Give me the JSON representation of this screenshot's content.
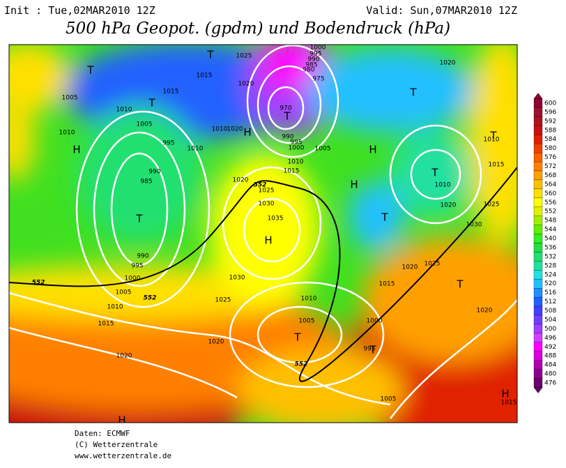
{
  "header": {
    "init": "Init : Tue,02MAR2010 12Z",
    "valid": "Valid: Sun,07MAR2010 12Z",
    "title": "500 hPa Geopot. (gpdm) und Bodendruck (hPa)"
  },
  "colorbar": {
    "ticks": [
      600,
      596,
      592,
      588,
      584,
      580,
      576,
      572,
      568,
      564,
      560,
      556,
      552,
      548,
      544,
      540,
      536,
      532,
      528,
      524,
      520,
      516,
      512,
      508,
      504,
      500,
      496,
      492,
      488,
      484,
      480,
      476
    ],
    "colors": [
      "#900030",
      "#a01030",
      "#b01020",
      "#c81010",
      "#e02000",
      "#f04000",
      "#ff6000",
      "#ff8000",
      "#ffa000",
      "#ffc000",
      "#ffe000",
      "#ffff00",
      "#e0f000",
      "#a0f000",
      "#60f000",
      "#30f020",
      "#20e040",
      "#20e070",
      "#20e0a0",
      "#20e0e0",
      "#20c0ff",
      "#2090ff",
      "#2060ff",
      "#4040ff",
      "#7040ff",
      "#a040ff",
      "#d040ff",
      "#ff00ff",
      "#d800d8",
      "#b000b0",
      "#8b008b",
      "#6a0070"
    ]
  },
  "map": {
    "isobar_labels": [
      1025,
      1015,
      1020,
      1015,
      1005,
      1010,
      1005,
      1010,
      1010,
      1020,
      995,
      1010,
      990,
      985,
      1020,
      1025,
      1030,
      1035,
      990,
      995,
      1000,
      1005,
      1010,
      1015,
      1020,
      1020,
      1025,
      1030,
      1010,
      1005,
      1000,
      995,
      1005,
      1015,
      1020,
      1025,
      1030,
      1020,
      1010,
      1025,
      1015,
      1010,
      1020,
      1015,
      1020,
      1000,
      995,
      990,
      985,
      980,
      975,
      970,
      990,
      995,
      1000,
      1005,
      1010,
      1015
    ],
    "thickness_labels": [
      552,
      552,
      552,
      552
    ],
    "centers": [
      "T",
      "T",
      "T",
      "T",
      "H",
      "H",
      "H",
      "H",
      "T",
      "T",
      "T",
      "T",
      "H",
      "T",
      "T",
      "T",
      "T",
      "H",
      "H"
    ]
  },
  "footer": {
    "lines": [
      "Daten: ECMWF",
      "(C) Wetterzentrale",
      "www.wetterzentrale.de"
    ]
  }
}
